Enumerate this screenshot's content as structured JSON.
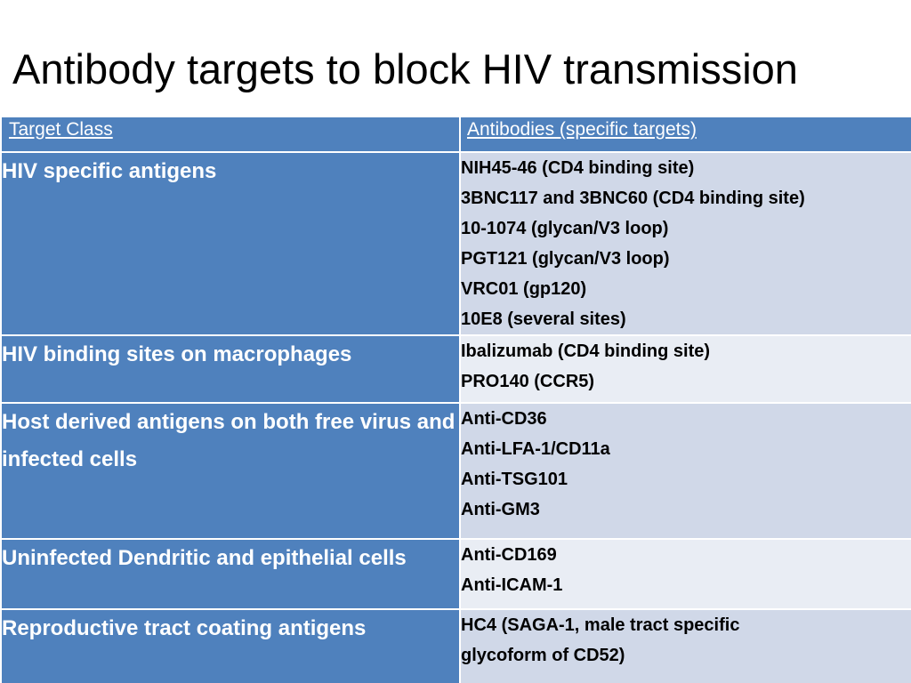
{
  "slide": {
    "title": "Antibody targets to block HIV transmission"
  },
  "table": {
    "headers": {
      "target_class": "Target Class",
      "antibodies": "Antibodies (specific targets)"
    },
    "rows": [
      {
        "target_class": "HIV specific antigens",
        "antibodies": [
          "NIH45-46 (CD4 binding site)",
          "3BNC117 and 3BNC60 (CD4 binding site)",
          "10-1074 (glycan/V3 loop)",
          "PGT121 (glycan/V3 loop)",
          "VRC01 (gp120)",
          "10E8 (several sites)"
        ]
      },
      {
        "target_class": "HIV binding sites on macrophages",
        "antibodies": [
          "Ibalizumab (CD4 binding site)",
          "PRO140 (CCR5)"
        ]
      },
      {
        "target_class": "Host derived antigens on both free virus and infected cells",
        "antibodies": [
          "Anti-CD36",
          "Anti-LFA-1/CD11a",
          "Anti-TSG101",
          "Anti-GM3"
        ]
      },
      {
        "target_class": "Uninfected Dendritic and epithelial cells",
        "antibodies": [
          "Anti-CD169",
          "Anti-ICAM-1"
        ]
      },
      {
        "target_class": "Reproductive tract coating antigens",
        "antibodies": [
          "HC4 (SAGA-1, male tract specific",
          "glycoform of CD52)"
        ]
      }
    ]
  },
  "colors": {
    "header_fill": "#4f81bd",
    "row_fill_dark": "#d0d8e8",
    "row_fill_light": "#e9edf4"
  }
}
